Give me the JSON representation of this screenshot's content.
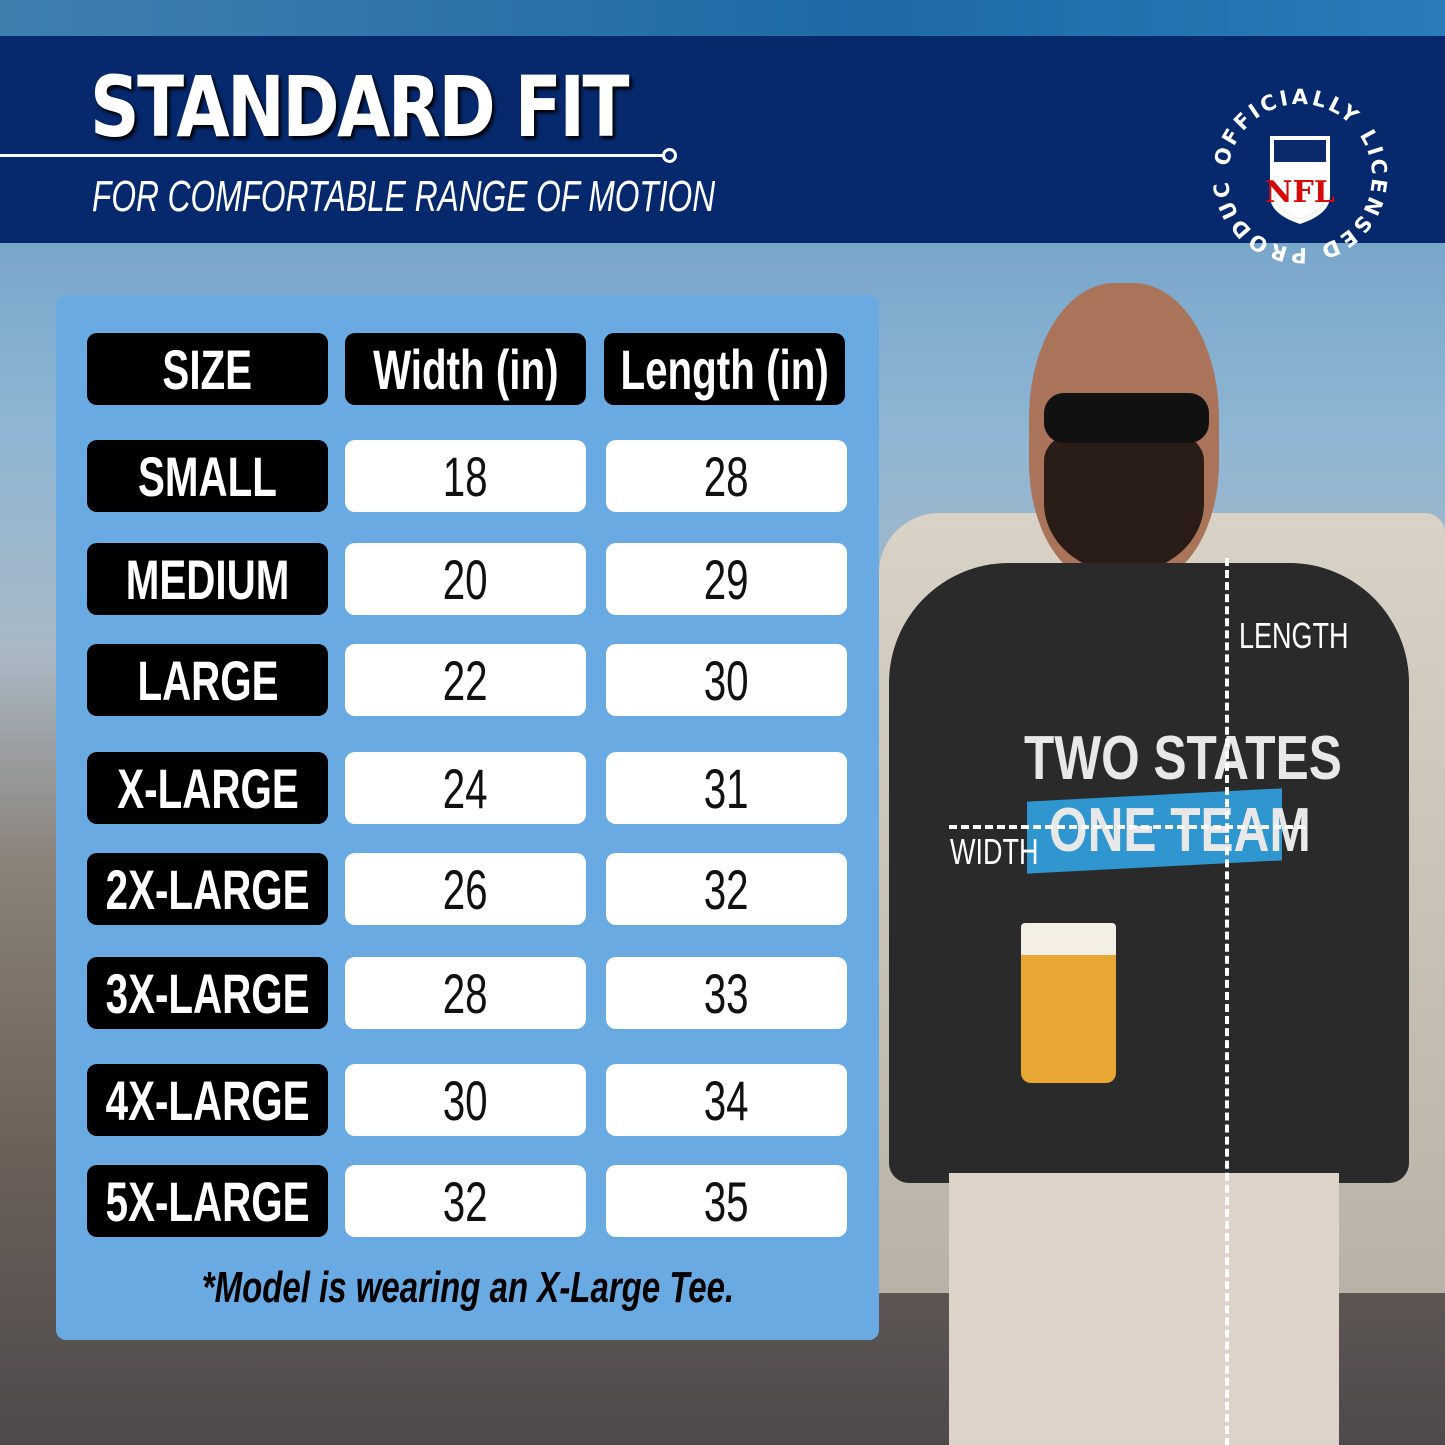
{
  "header": {
    "title": "STANDARD FIT",
    "subtitle": "FOR COMFORTABLE RANGE OF MOTION"
  },
  "badge": {
    "ring_text": "OFFICIALLY LICENSED PRODUCT",
    "logo_text": "NFL",
    "icon": "nfl-shield-icon"
  },
  "table": {
    "columns": [
      "SIZE",
      "Width (in)",
      "Length (in)"
    ],
    "rows": [
      {
        "size": "SMALL",
        "width": "18",
        "length": "28"
      },
      {
        "size": "MEDIUM",
        "width": "20",
        "length": "29"
      },
      {
        "size": "LARGE",
        "width": "22",
        "length": "30"
      },
      {
        "size": "X-LARGE",
        "width": "24",
        "length": "31"
      },
      {
        "size": "2X-LARGE",
        "width": "26",
        "length": "32"
      },
      {
        "size": "3X-LARGE",
        "width": "28",
        "length": "33"
      },
      {
        "size": "4X-LARGE",
        "width": "30",
        "length": "34"
      },
      {
        "size": "5X-LARGE",
        "width": "32",
        "length": "35"
      }
    ],
    "footnote": "*Model is wearing an X-Large Tee."
  },
  "photo": {
    "length_label": "LENGTH",
    "width_label": "WIDTH",
    "shirt_line1": "TWO STATES",
    "shirt_line2": "ONE TEAM"
  },
  "colors": {
    "banner": "#06296e",
    "panel": "#6aaae2",
    "label_bg": "#000000",
    "value_bg": "#ffffff",
    "nfl_red": "#d50a0a",
    "panthers_blue": "#2f96d0"
  }
}
